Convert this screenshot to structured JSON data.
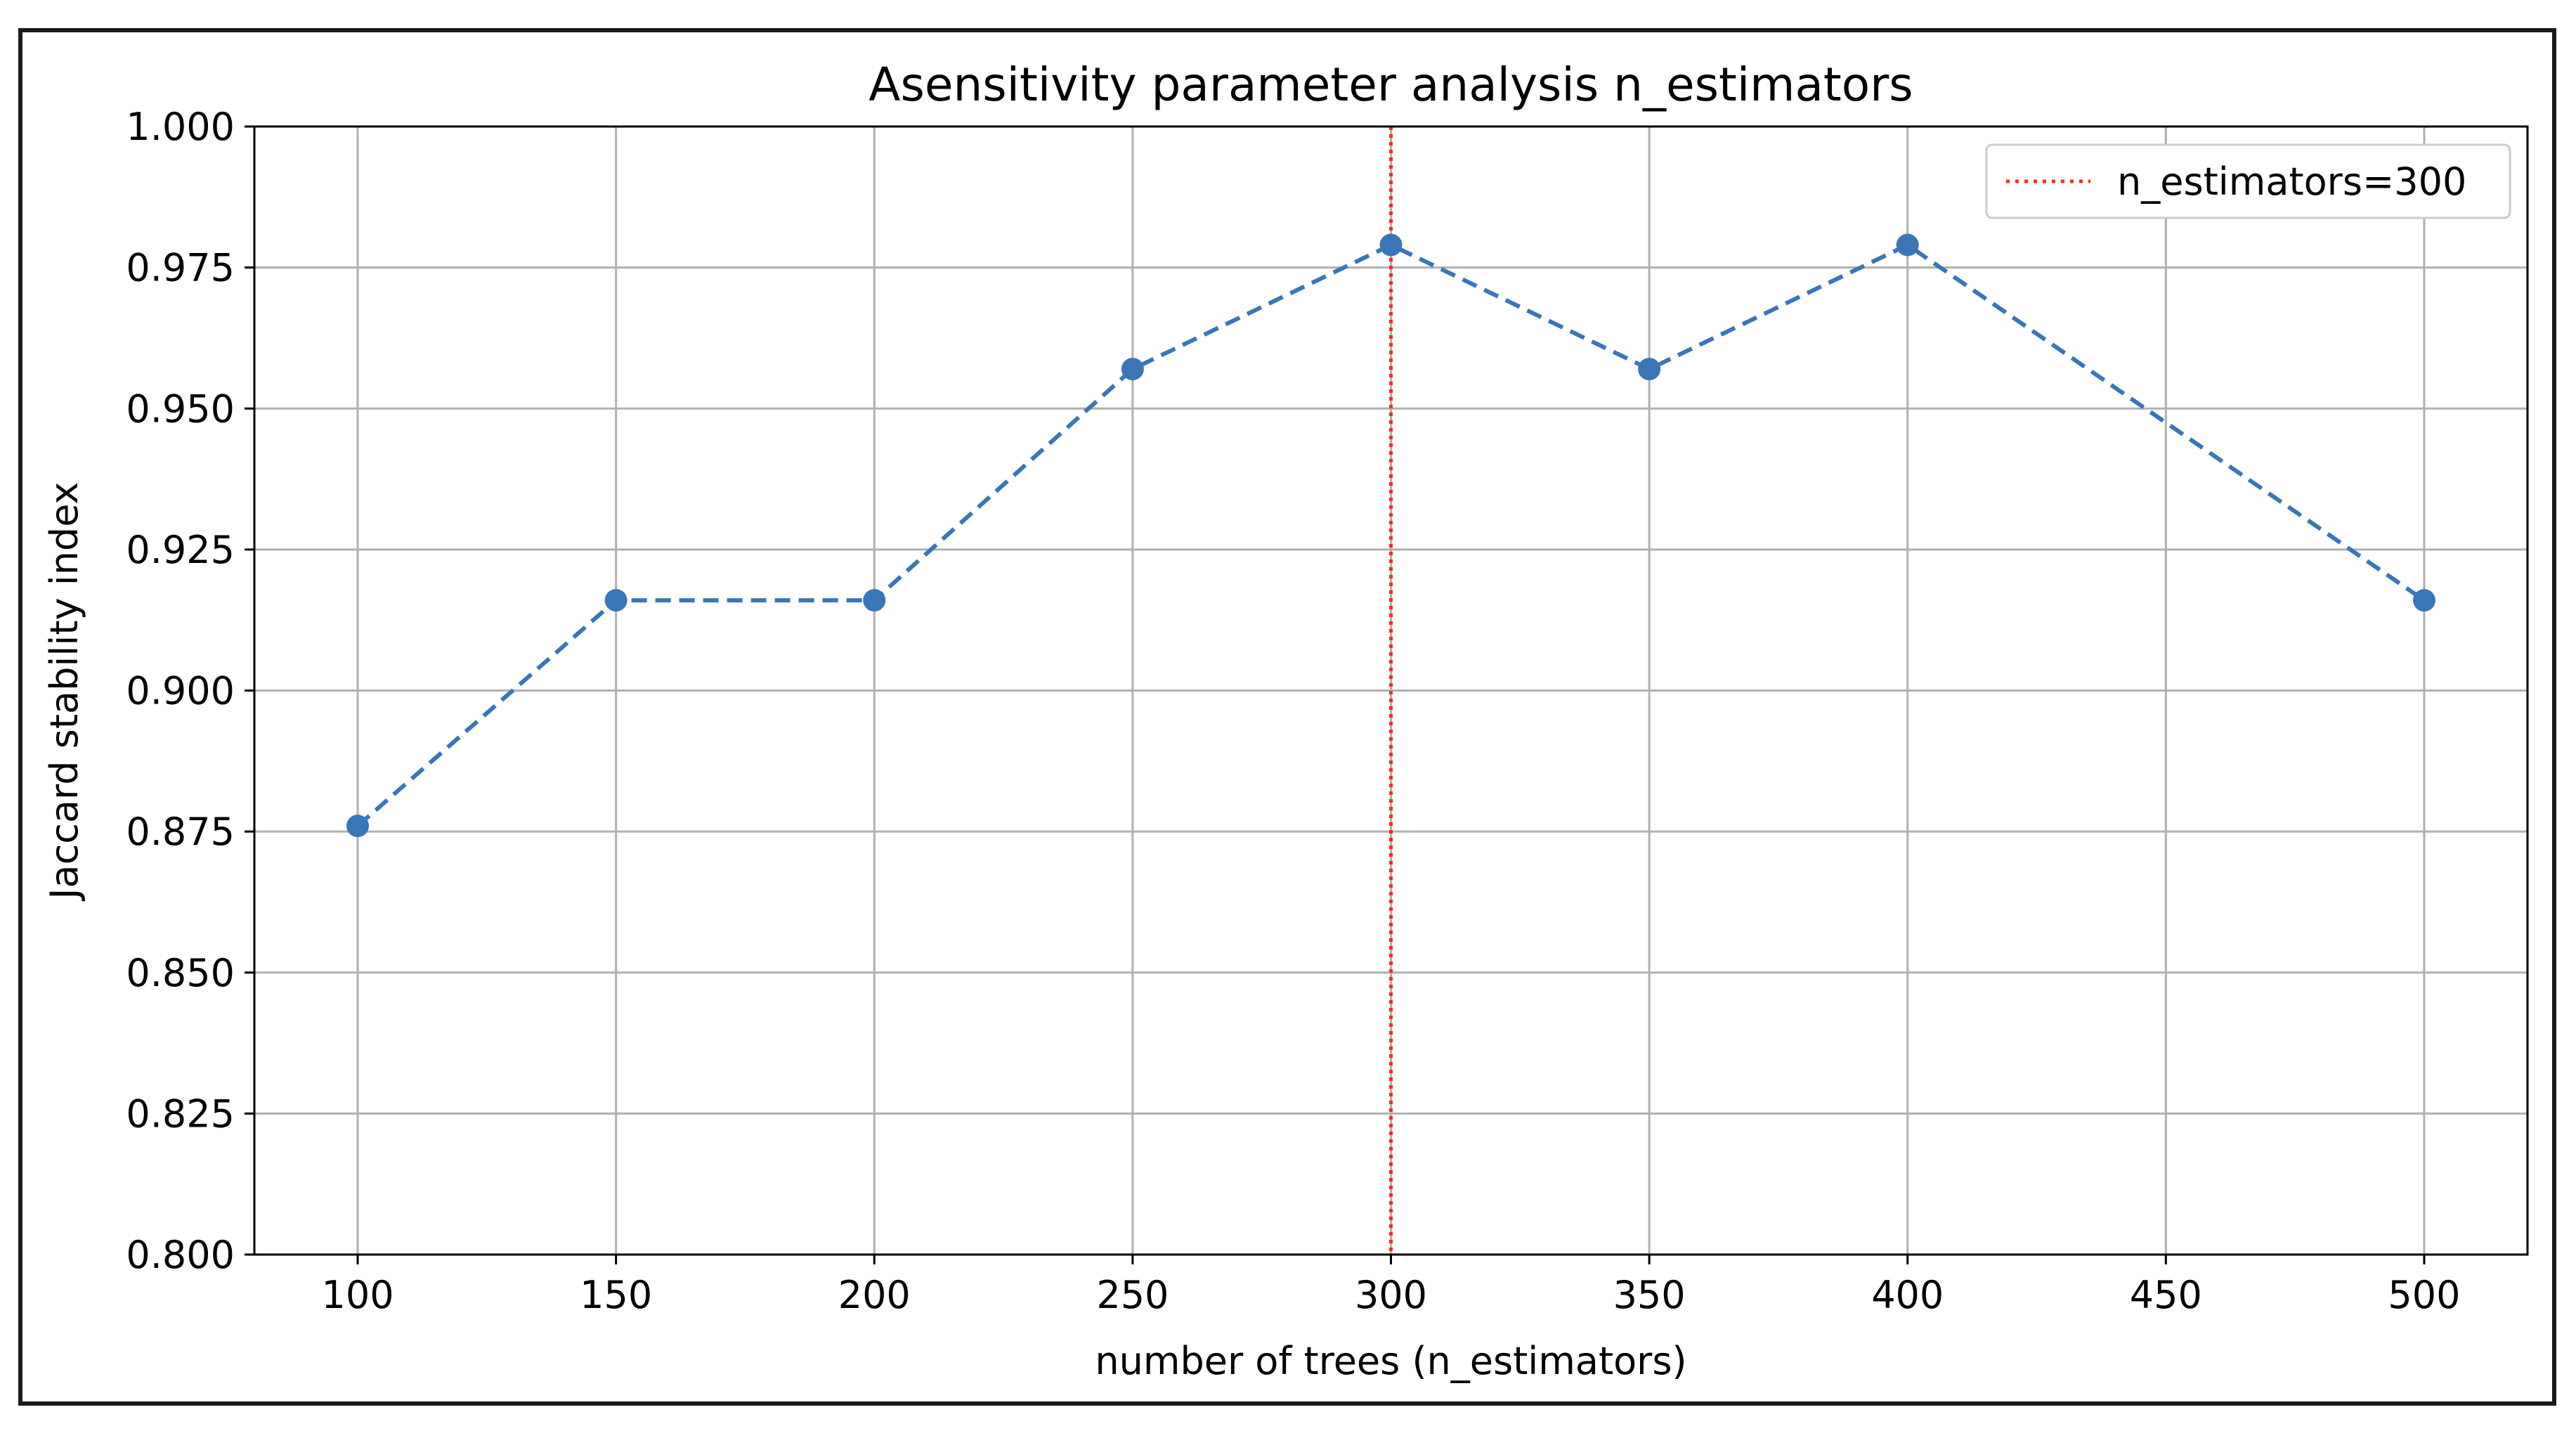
{
  "chart_data": {
    "type": "line",
    "title": "Asensitivity parameter analysis n_estimators",
    "xlabel": "number of trees (n_estimators)",
    "ylabel": "Jaccard stability index",
    "xlim": [
      80,
      520
    ],
    "ylim": [
      0.8,
      1.0
    ],
    "x_ticks": [
      100,
      150,
      200,
      250,
      300,
      350,
      400,
      450,
      500
    ],
    "y_ticks": [
      0.8,
      0.825,
      0.85,
      0.875,
      0.9,
      0.925,
      0.95,
      0.975,
      1.0
    ],
    "x_tick_labels": [
      "100",
      "150",
      "200",
      "250",
      "300",
      "350",
      "400",
      "450",
      "500"
    ],
    "y_tick_labels": [
      "0.800",
      "0.825",
      "0.850",
      "0.875",
      "0.900",
      "0.925",
      "0.950",
      "0.975",
      "1.000"
    ],
    "grid": true,
    "legend_position": "top-right",
    "series": [
      {
        "x": [
          100,
          150,
          200,
          250,
          300,
          350,
          400,
          500
        ],
        "values": [
          0.876,
          0.916,
          0.916,
          0.957,
          0.979,
          0.957,
          0.979,
          0.916
        ],
        "color": "#3a76b7",
        "line_style": "dashed",
        "marker": "circle"
      }
    ],
    "reference_lines": [
      {
        "orientation": "vertical",
        "x": 300,
        "label": "n_estimators=300",
        "color": "#ff2a1a",
        "line_style": "dotted"
      }
    ]
  }
}
